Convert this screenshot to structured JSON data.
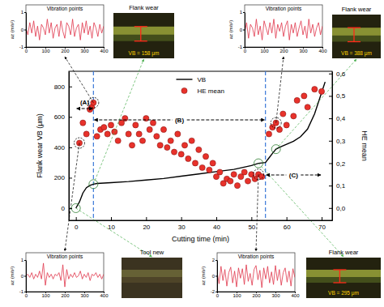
{
  "chart_data": [
    {
      "type": "line",
      "x_label": "Cutting time (min)",
      "y_label": "Flank wear VB (μm)",
      "y2_label": "HE mean",
      "xlim": [
        -2,
        73
      ],
      "xticks": [
        0,
        10,
        20,
        30,
        40,
        50,
        60,
        70
      ],
      "ylim": [
        -80,
        900
      ],
      "yticks": [
        0,
        200,
        400,
        600,
        800
      ],
      "y2lim": [
        -0.055,
        0.61
      ],
      "y2ticks": [
        {
          "value": 0,
          "label": "0,0"
        },
        {
          "value": 0.1,
          "label": "0,1"
        },
        {
          "value": 0.2,
          "label": "0,2"
        },
        {
          "value": 0.3,
          "label": "0,3"
        },
        {
          "value": 0.4,
          "label": "0,4"
        },
        {
          "value": 0.5,
          "label": "0,5"
        },
        {
          "value": 0.6,
          "label": "0,6"
        }
      ],
      "legend": "top",
      "series": [
        {
          "name": "VB",
          "type": "line",
          "color": "#000000",
          "line_style": "solid",
          "x": [
            0,
            1,
            2,
            3,
            4,
            5,
            6,
            8,
            10,
            15,
            20,
            25,
            30,
            35,
            40,
            45,
            50,
            52,
            54,
            55,
            56,
            57,
            58,
            60,
            62,
            64,
            66,
            68,
            70,
            71
          ],
          "values": [
            0,
            40,
            100,
            135,
            150,
            158,
            162,
            165,
            168,
            175,
            185,
            195,
            210,
            225,
            240,
            255,
            280,
            295,
            300,
            330,
            360,
            388,
            400,
            420,
            440,
            470,
            520,
            620,
            760,
            830
          ]
        },
        {
          "name": "HE mean",
          "type": "scatter",
          "axis": "y2",
          "color": "#e8322b",
          "marker": "circle",
          "x": [
            1,
            2,
            3,
            4,
            4.5,
            5,
            6,
            7,
            8,
            9,
            10,
            11,
            12,
            13,
            14,
            15,
            16,
            17,
            18,
            19,
            20,
            21,
            22,
            23,
            24,
            25,
            26,
            27,
            28,
            29,
            30,
            31,
            32,
            33,
            34,
            35,
            36,
            37,
            38,
            39,
            40,
            41,
            42,
            43,
            44,
            45,
            46,
            47,
            48,
            49,
            50,
            51,
            52,
            53,
            55,
            56,
            57,
            58,
            59,
            60,
            62,
            63,
            65,
            66,
            68,
            70
          ],
          "values": [
            0.29,
            0.38,
            0.33,
            0.44,
            0.45,
            0.47,
            0.32,
            0.35,
            0.36,
            0.33,
            0.37,
            0.34,
            0.3,
            0.38,
            0.4,
            0.33,
            0.28,
            0.37,
            0.33,
            0.3,
            0.4,
            0.35,
            0.38,
            0.32,
            0.28,
            0.35,
            0.27,
            0.3,
            0.25,
            0.33,
            0.24,
            0.28,
            0.22,
            0.3,
            0.2,
            0.26,
            0.18,
            0.23,
            0.17,
            0.2,
            0.14,
            0.16,
            0.11,
            0.13,
            0.12,
            0.15,
            0.1,
            0.14,
            0.16,
            0.12,
            0.15,
            0.13,
            0.15,
            0.14,
            0.33,
            0.36,
            0.38,
            0.35,
            0.42,
            0.37,
            0.41,
            0.48,
            0.5,
            0.45,
            0.53,
            0.52
          ]
        }
      ],
      "phase_boundaries": [
        5,
        54
      ],
      "regions": [
        {
          "label": "(A)",
          "x": [
            0,
            5
          ]
        },
        {
          "label": "(B)",
          "x": [
            5,
            54
          ]
        },
        {
          "label": "(C)",
          "x": [
            54,
            70
          ]
        }
      ]
    },
    {
      "type": "line",
      "title": "Vibration points",
      "y_label": "az (m/s²)",
      "xlim": [
        0,
        400
      ],
      "xticks": [
        0,
        100,
        200,
        300,
        400
      ],
      "ylim": [
        -1,
        1
      ],
      "yticks": [
        -1,
        0,
        1
      ],
      "series": [
        {
          "color": "#e0354a",
          "x": [
            0,
            10,
            20,
            30,
            40,
            50,
            60,
            70,
            80,
            90,
            100,
            110,
            120,
            130,
            140,
            150,
            160,
            170,
            180,
            190,
            200,
            210,
            220,
            230,
            240,
            250,
            260,
            270,
            280,
            290,
            300,
            310,
            320,
            330,
            340,
            350,
            360,
            370,
            380,
            390,
            400
          ],
          "values": [
            0.1,
            -0.3,
            0.4,
            -0.2,
            0.5,
            -0.4,
            0.2,
            -0.6,
            0.3,
            0.1,
            -0.3,
            0.6,
            -0.2,
            0.4,
            -0.5,
            0.1,
            0.3,
            -0.4,
            0.5,
            -0.1,
            -0.5,
            0.4,
            0.2,
            -0.3,
            0.6,
            -0.4,
            0.1,
            0.3,
            -0.6,
            0.4,
            -0.2,
            0.5,
            -0.3,
            0.2,
            -0.5,
            0.4,
            0.1,
            -0.4,
            0.3,
            -0.2,
            0.2
          ]
        }
      ],
      "photo": {
        "title": "Flank wear",
        "label": "VB = 158 μm"
      },
      "he_point": [
        5,
        0.47
      ],
      "vb_point": [
        5,
        158
      ]
    },
    {
      "type": "line",
      "title": "Vibration points",
      "y_label": "az (m/s²)",
      "xlim": [
        0,
        400
      ],
      "xticks": [
        0,
        100,
        200,
        300,
        400
      ],
      "ylim": [
        -1,
        1
      ],
      "yticks": [
        -1,
        0,
        1
      ],
      "series": [
        {
          "color": "#e0354a",
          "x": [
            0,
            10,
            20,
            30,
            40,
            50,
            60,
            70,
            80,
            90,
            100,
            110,
            120,
            130,
            140,
            150,
            160,
            170,
            180,
            190,
            200,
            210,
            220,
            230,
            240,
            250,
            260,
            270,
            280,
            290,
            300,
            310,
            320,
            330,
            340,
            350,
            360,
            370,
            380,
            390,
            400
          ],
          "values": [
            -0.2,
            0.4,
            -0.5,
            0.3,
            0.1,
            -0.4,
            0.6,
            -0.3,
            0.2,
            -0.6,
            0.5,
            0.1,
            -0.3,
            0.4,
            -0.2,
            0.6,
            -0.5,
            0.3,
            -0.1,
            0.4,
            -0.4,
            0.2,
            0.5,
            -0.6,
            0.3,
            -0.2,
            0.4,
            -0.4,
            0.1,
            0.5,
            -0.3,
            0.2,
            -0.5,
            0.6,
            -0.2,
            0.3,
            -0.4,
            0.1,
            0.4,
            -0.3,
            0.2
          ]
        }
      ],
      "photo": {
        "title": "Flank wear",
        "label": "VB = 388 μm"
      },
      "he_point": [
        57,
        0.38
      ],
      "vb_point": [
        57,
        388
      ]
    },
    {
      "type": "line",
      "title": "Vibration points",
      "y_label": "az (m/s²)",
      "xlim": [
        0,
        400
      ],
      "xticks": [
        0,
        100,
        200,
        300,
        400
      ],
      "ylim": [
        -1,
        1
      ],
      "yticks": [
        -1,
        0,
        1
      ],
      "series": [
        {
          "color": "#e0354a",
          "x": [
            0,
            10,
            20,
            30,
            40,
            50,
            60,
            70,
            80,
            90,
            100,
            110,
            120,
            130,
            140,
            150,
            160,
            170,
            180,
            190,
            200,
            210,
            220,
            230,
            240,
            250,
            260,
            270,
            280,
            290,
            300,
            310,
            320,
            330,
            340,
            350,
            360,
            370,
            380,
            390,
            400
          ],
          "values": [
            0,
            0.1,
            -0.1,
            0.2,
            -0.2,
            0.1,
            -0.1,
            0.3,
            -0.2,
            0.8,
            -0.6,
            0.2,
            -0.1,
            0.1,
            -0.2,
            0.1,
            0,
            0.2,
            -0.3,
            0.7,
            -0.7,
            0.4,
            -0.2,
            0.1,
            -0.1,
            0.2,
            -0.1,
            0,
            0.3,
            -0.2,
            0.1,
            -0.1,
            0.2,
            -0.3,
            0.1,
            0,
            0.2,
            -0.1,
            0.1,
            -0.2,
            0.1
          ]
        }
      ],
      "photo": {
        "title": "Tool new"
      },
      "he_point": [
        1,
        0.29
      ],
      "vb_point": [
        0,
        0
      ]
    },
    {
      "type": "line",
      "title": "Vibration points",
      "y_label": "az (m/s²)",
      "xlim": [
        0,
        400
      ],
      "xticks": [
        0,
        100,
        200,
        300,
        400
      ],
      "ylim": [
        -2,
        2
      ],
      "yticks": [
        -2,
        0,
        2
      ],
      "series": [
        {
          "color": "#e0354a",
          "x": [
            0,
            10,
            20,
            30,
            40,
            50,
            60,
            70,
            80,
            90,
            100,
            110,
            120,
            130,
            140,
            150,
            160,
            170,
            180,
            190,
            200,
            210,
            220,
            230,
            240,
            250,
            260,
            270,
            280,
            290,
            300,
            310,
            320,
            330,
            340,
            350,
            360,
            370,
            380,
            390,
            400
          ],
          "values": [
            0.5,
            -1.0,
            1.2,
            -0.6,
            0.8,
            -1.3,
            0.4,
            1.1,
            -0.9,
            0.6,
            -1.4,
            1.0,
            -0.3,
            0.9,
            -1.1,
            1.4,
            -0.7,
            0.3,
            -1.2,
            0.8,
            1.3,
            -0.5,
            0.7,
            -1.5,
            1.0,
            -0.4,
            1.2,
            -0.9,
            0.5,
            -1.1,
            1.3,
            -0.6,
            0.8,
            -1.2,
            0.4,
            1.0,
            -0.8,
            0.6,
            -1.3,
            0.9,
            -0.2
          ]
        }
      ],
      "photo": {
        "title": "Flank wear",
        "label": "VB = 295 μm"
      },
      "he_point": [
        52,
        0.15
      ],
      "vb_point": [
        52,
        295
      ]
    }
  ]
}
